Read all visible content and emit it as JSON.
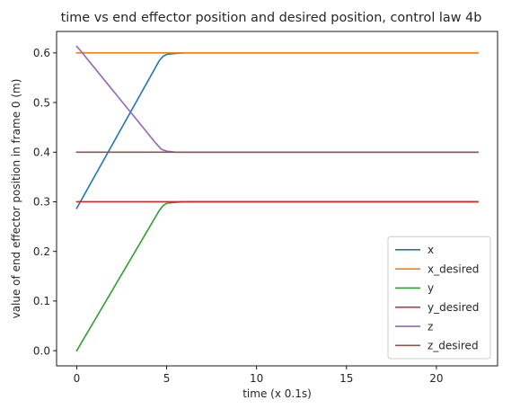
{
  "chart_data": {
    "type": "line",
    "title": "time vs end effector position and desired position, control law 4b",
    "xlabel": "time (x 0.1s)",
    "ylabel": "value of end effector position in frame 0 (m)",
    "xlim": [
      -1.12,
      23.4
    ],
    "ylim": [
      -0.0306,
      0.6432
    ],
    "xticks": [
      0,
      5,
      10,
      15,
      20
    ],
    "yticks": [
      0.0,
      0.1,
      0.2,
      0.3,
      0.4,
      0.5,
      0.6
    ],
    "xtick_labels": [
      "0",
      "5",
      "10",
      "15",
      "20"
    ],
    "ytick_labels": [
      "0.0",
      "0.1",
      "0.2",
      "0.3",
      "0.4",
      "0.5",
      "0.6"
    ],
    "grid": false,
    "legend_position": "lower-right",
    "series": [
      {
        "name": "x",
        "color": "#1f77b4",
        "x": [
          0,
          4.6,
          4.8,
          5.0,
          5.5,
          6.0,
          7.0,
          10.0,
          15.0,
          20.0,
          22.3
        ],
        "y": [
          0.287,
          0.585,
          0.593,
          0.597,
          0.599,
          0.6,
          0.6,
          0.6,
          0.6,
          0.6,
          0.6
        ]
      },
      {
        "name": "x_desired",
        "color": "#ff7f0e",
        "x": [
          0,
          22.3
        ],
        "y": [
          0.6,
          0.6
        ]
      },
      {
        "name": "y",
        "color": "#2ca02c",
        "x": [
          0,
          4.6,
          4.8,
          5.0,
          5.5,
          6.0,
          7.0,
          10.0,
          15.0,
          20.0,
          22.3
        ],
        "y": [
          0.0,
          0.283,
          0.292,
          0.297,
          0.299,
          0.3,
          0.3,
          0.3,
          0.3,
          0.3,
          0.3
        ]
      },
      {
        "name": "y_desired",
        "color": "#d62728",
        "x": [
          0,
          22.3
        ],
        "y": [
          0.3,
          0.3
        ]
      },
      {
        "name": "z",
        "color": "#9467bd",
        "x": [
          0,
          0.2,
          4.4,
          4.7,
          5.0,
          5.5,
          6.0,
          7.0,
          10.0,
          15.0,
          20.0,
          22.3
        ],
        "y": [
          0.613,
          0.605,
          0.418,
          0.406,
          0.402,
          0.4,
          0.4,
          0.4,
          0.4,
          0.4,
          0.4,
          0.4
        ]
      },
      {
        "name": "z_desired",
        "color": "#8c564b",
        "x": [
          0,
          22.3
        ],
        "y": [
          0.4,
          0.4
        ]
      }
    ]
  }
}
